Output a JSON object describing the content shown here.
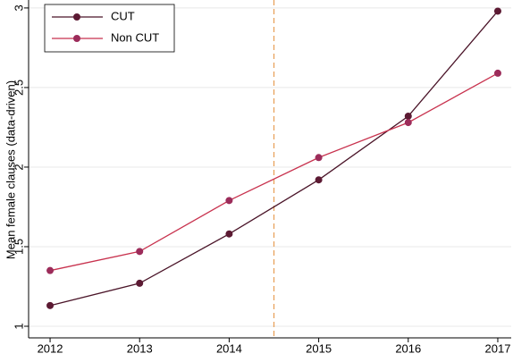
{
  "chart_data": {
    "type": "line",
    "ylabel": "Mean female clauses (data-driven)",
    "x": [
      2012,
      2013,
      2014,
      2015,
      2016,
      2017
    ],
    "series": [
      {
        "name": "CUT",
        "color": "#4a1428",
        "marker_color": "#5c1a33",
        "values": [
          1.13,
          1.27,
          1.58,
          1.92,
          2.32,
          2.98
        ]
      },
      {
        "name": "Non CUT",
        "color": "#c8324e",
        "marker_color": "#9c2c5a",
        "values": [
          1.35,
          1.47,
          1.79,
          2.06,
          2.28,
          2.59
        ]
      }
    ],
    "xlim": [
      2011.76,
      2017.15
    ],
    "xticks": [
      2012,
      2013,
      2014,
      2015,
      2016,
      2017
    ],
    "ylim": [
      0.927,
      3.05
    ],
    "yticks": [
      1,
      1.5,
      2,
      2.5,
      3
    ],
    "grid": true,
    "legend": "upper left",
    "reference_line": {
      "x": 2014.5,
      "color": "#e8a25c",
      "dashed": true
    }
  }
}
